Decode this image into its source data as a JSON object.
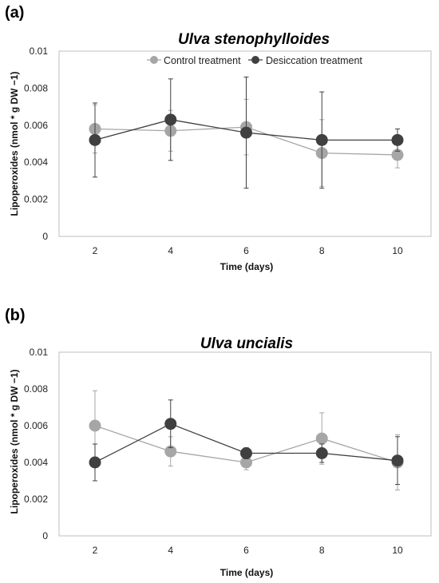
{
  "chart_data": [
    {
      "type": "line",
      "panel": "(a)",
      "title": "Ulva stenophylloides",
      "xlabel": "Time (days)",
      "ylabel": "Lipoperoxides (nmol * g DW −1)",
      "x": [
        2,
        4,
        6,
        8,
        10
      ],
      "xticks": [
        "2",
        "4",
        "6",
        "8",
        "10"
      ],
      "ylim": [
        0,
        0.01
      ],
      "yticks": [
        "0",
        "0.002",
        "0.004",
        "0.006",
        "0.008",
        "0.01"
      ],
      "grid": false,
      "legend_position": "top-center",
      "series": [
        {
          "name": "Control treatment",
          "color": "#a6a6a6",
          "values": [
            0.0058,
            0.0057,
            0.0059,
            0.0045,
            0.0044
          ],
          "error": [
            0.0013,
            0.0011,
            0.0015,
            0.0018,
            0.0007
          ]
        },
        {
          "name": "Desiccation treatment",
          "color": "#404040",
          "values": [
            0.0052,
            0.0063,
            0.0056,
            0.0052,
            0.0052
          ],
          "error": [
            0.002,
            0.0022,
            0.003,
            0.0026,
            0.0006
          ]
        }
      ]
    },
    {
      "type": "line",
      "panel": "(b)",
      "title": "Ulva uncialis",
      "xlabel": "Time (days)",
      "ylabel": "Lipoperoxides (nmol * g DW −1)",
      "x": [
        2,
        4,
        6,
        8,
        10
      ],
      "xticks": [
        "2",
        "4",
        "6",
        "8",
        "10"
      ],
      "ylim": [
        0,
        0.01
      ],
      "yticks": [
        "0",
        "0.002",
        "0.004",
        "0.006",
        "0.008",
        "0.01"
      ],
      "grid": false,
      "series": [
        {
          "name": "Control treatment",
          "color": "#a6a6a6",
          "values": [
            0.006,
            0.0046,
            0.004,
            0.0053,
            0.004
          ],
          "error": [
            0.0019,
            0.0008,
            0.0004,
            0.0014,
            0.0015
          ]
        },
        {
          "name": "Desiccation treatment",
          "color": "#404040",
          "values": [
            0.004,
            0.0061,
            0.0045,
            0.0045,
            0.0041
          ],
          "error": [
            0.001,
            0.0013,
            0.0003,
            0.0005,
            0.0013
          ]
        }
      ]
    }
  ]
}
